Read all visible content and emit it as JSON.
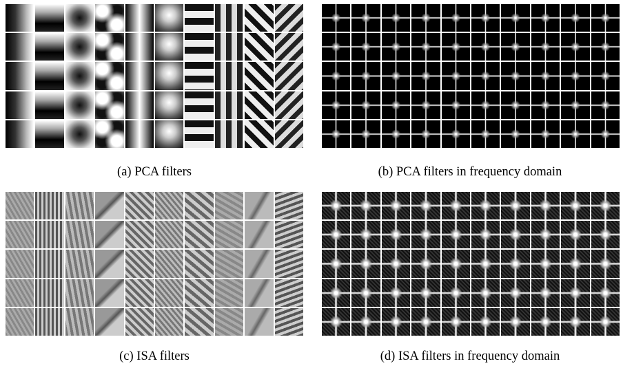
{
  "figure": {
    "panels": [
      {
        "id": "a",
        "caption": "(a) PCA filters",
        "kind": "pca-spatial",
        "rows": 5,
        "cols": 10
      },
      {
        "id": "b",
        "caption": "(b) PCA filters in frequency domain",
        "kind": "pca-freq",
        "rows": 5,
        "cols": 10
      },
      {
        "id": "c",
        "caption": "(c) ISA filters",
        "kind": "isa-spatial",
        "rows": 5,
        "cols": 10
      },
      {
        "id": "d",
        "caption": "(d) ISA filters in frequency domain",
        "kind": "isa-freq",
        "rows": 5,
        "cols": 10
      }
    ]
  }
}
